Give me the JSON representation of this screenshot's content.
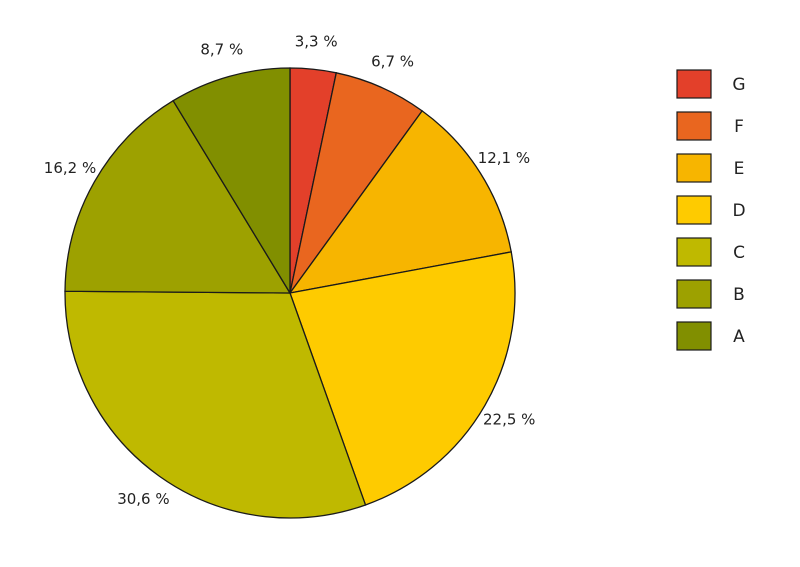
{
  "chart_data": {
    "type": "pie",
    "title": "",
    "start": "top",
    "direction": "clockwise",
    "slices": [
      {
        "name": "G",
        "value": 3.3,
        "label": "3,3 %",
        "color": "#e3402a"
      },
      {
        "name": "F",
        "value": 6.7,
        "label": "6,7 %",
        "color": "#e9661f"
      },
      {
        "name": "E",
        "value": 12.1,
        "label": "12,1 %",
        "color": "#f7b500"
      },
      {
        "name": "D",
        "value": 22.5,
        "label": "22,5 %",
        "color": "#fecb00"
      },
      {
        "name": "C",
        "value": 30.6,
        "label": "30,6 %",
        "color": "#bfb900"
      },
      {
        "name": "B",
        "value": 16.2,
        "label": "16,2 %",
        "color": "#9da100"
      },
      {
        "name": "A",
        "value": 8.7,
        "label": "8,7 %",
        "color": "#818f00"
      }
    ],
    "legend": {
      "position": "right",
      "entries": [
        "G",
        "F",
        "E",
        "D",
        "C",
        "B",
        "A"
      ]
    }
  }
}
